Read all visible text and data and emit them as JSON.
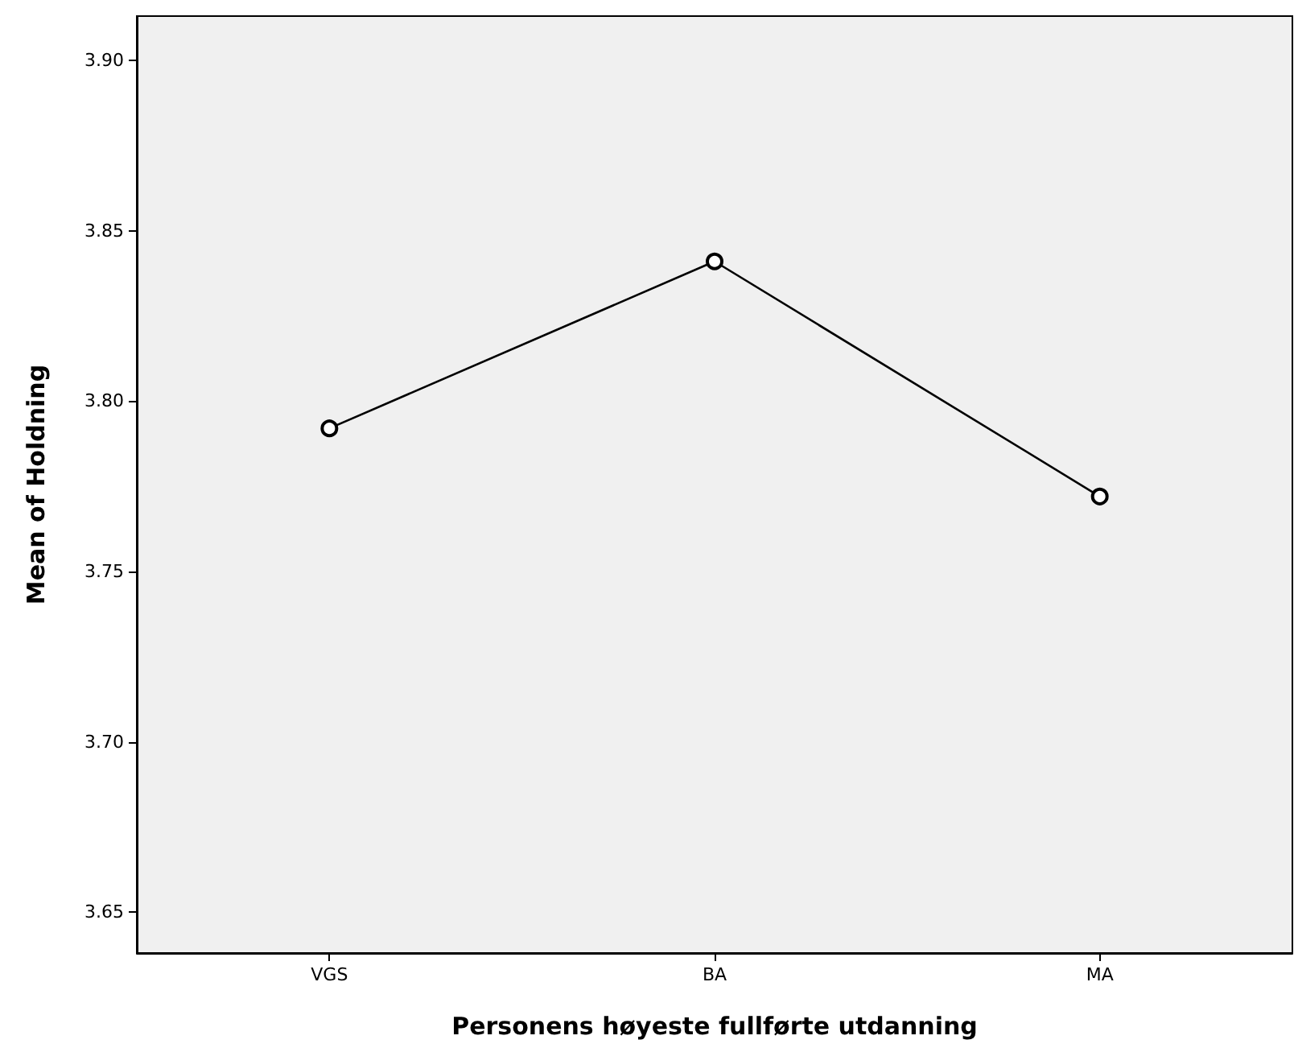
{
  "chart_data": {
    "type": "line",
    "xlabel": "Personens høyeste fullførte utdanning",
    "ylabel": "Mean of Holdning",
    "categories": [
      "VGS",
      "BA",
      "MA"
    ],
    "series": [
      {
        "color": "#000000",
        "values": [
          3.792,
          3.841,
          3.772
        ]
      }
    ],
    "ylim": [
      3.638,
      3.913
    ],
    "yticks": [
      {
        "value": 3.65,
        "label": "3.65"
      },
      {
        "value": 3.7,
        "label": "3.70"
      },
      {
        "value": 3.75,
        "label": "3.75"
      },
      {
        "value": 3.8,
        "label": "3.80"
      },
      {
        "value": 3.85,
        "label": "3.85"
      },
      {
        "value": 3.9,
        "label": "3.90"
      }
    ],
    "grid": false,
    "marker": "circle",
    "line_style": "solid"
  }
}
